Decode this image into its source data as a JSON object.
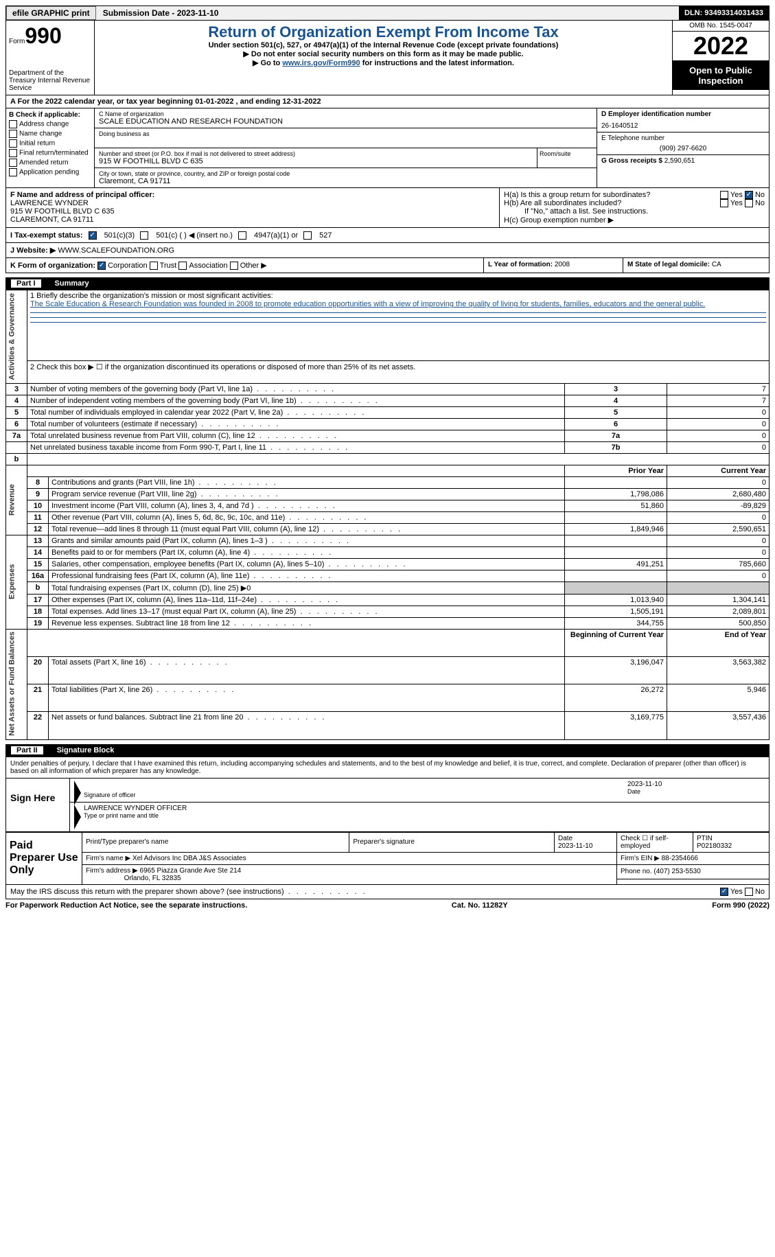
{
  "topbar": {
    "efile": "efile GRAPHIC print",
    "submission": "Submission Date - 2023-11-10",
    "dln": "DLN: 93493314031433"
  },
  "header": {
    "form": "Form",
    "form_num": "990",
    "dept": "Department of the Treasury Internal Revenue Service",
    "title": "Return of Organization Exempt From Income Tax",
    "subtitle": "Under section 501(c), 527, or 4947(a)(1) of the Internal Revenue Code (except private foundations)",
    "note1": "▶ Do not enter social security numbers on this form as it may be made public.",
    "note2_pre": "▶ Go to ",
    "note2_link": "www.irs.gov/Form990",
    "note2_post": " for instructions and the latest information.",
    "omb": "OMB No. 1545-0047",
    "year": "2022",
    "open": "Open to Public Inspection"
  },
  "rowA": "A For the 2022 calendar year, or tax year beginning 01-01-2022    , and ending 12-31-2022",
  "boxB": {
    "title": "B Check if applicable:",
    "opts": [
      "Address change",
      "Name change",
      "Initial return",
      "Final return/terminated",
      "Amended return",
      "Application pending"
    ]
  },
  "boxC": {
    "name_label": "C Name of organization",
    "name": "SCALE EDUCATION AND RESEARCH FOUNDATION",
    "dba_label": "Doing business as",
    "dba": "",
    "addr_label": "Number and street (or P.O. box if mail is not delivered to street address)",
    "room_label": "Room/suite",
    "addr": "915 W FOOTHILL BLVD C 635",
    "city_label": "City or town, state or province, country, and ZIP or foreign postal code",
    "city": "Claremont, CA  91711"
  },
  "boxD": {
    "ein_label": "D Employer identification number",
    "ein": "26-1640512",
    "phone_label": "E Telephone number",
    "phone": "(909) 297-6620",
    "gross_label": "G Gross receipts $",
    "gross": "2,590,651"
  },
  "boxF": {
    "label": "F Name and address of principal officer:",
    "name": "LAWRENCE WYNDER",
    "addr1": "915 W FOOTHILL BLVD C 635",
    "addr2": "CLAREMONT, CA  91711"
  },
  "boxH": {
    "ha": "H(a)  Is this a group return for subordinates?",
    "hb": "H(b)  Are all subordinates included?",
    "hb_note": "If \"No,\" attach a list. See instructions.",
    "hc": "H(c)  Group exemption number ▶",
    "yes": "Yes",
    "no": "No"
  },
  "rowI": {
    "label": "I   Tax-exempt status:",
    "opt1": "501(c)(3)",
    "opt2": "501(c) (  ) ◀ (insert no.)",
    "opt3": "4947(a)(1) or",
    "opt4": "527"
  },
  "rowJ": {
    "label": "J   Website: ▶",
    "value": "WWW.SCALEFOUNDATION.ORG"
  },
  "rowK": {
    "label": "K Form of organization:",
    "opts": [
      "Corporation",
      "Trust",
      "Association",
      "Other ▶"
    ]
  },
  "rowL": {
    "label": "L Year of formation:",
    "value": "2008"
  },
  "rowM": {
    "label": "M State of legal domicile:",
    "value": "CA"
  },
  "part1": {
    "num": "Part I",
    "title": "Summary"
  },
  "summary": {
    "q1_label": "1   Briefly describe the organization's mission or most significant activities:",
    "q1_text": "The Scale Education & Research Foundation was founded in 2008 to promote education opportunities with a view of improving the quality of living for students, families, educators and the general public.",
    "q2": "2    Check this box ▶ ☐  if the organization discontinued its operations or disposed of more than 25% of its net assets.",
    "groups": {
      "ag": "Activities & Governance",
      "rev": "Revenue",
      "exp": "Expenses",
      "nafb": "Net Assets or Fund Balances"
    },
    "prior_hdr": "Prior Year",
    "current_hdr": "Current Year",
    "begin_hdr": "Beginning of Current Year",
    "end_hdr": "End of Year",
    "rows_top": [
      {
        "n": "3",
        "t": "Number of voting members of the governing body (Part VI, line 1a)",
        "box": "3",
        "v": "7"
      },
      {
        "n": "4",
        "t": "Number of independent voting members of the governing body (Part VI, line 1b)",
        "box": "4",
        "v": "7"
      },
      {
        "n": "5",
        "t": "Total number of individuals employed in calendar year 2022 (Part V, line 2a)",
        "box": "5",
        "v": "0"
      },
      {
        "n": "6",
        "t": "Total number of volunteers (estimate if necessary)",
        "box": "6",
        "v": "0"
      },
      {
        "n": "7a",
        "t": "Total unrelated business revenue from Part VIII, column (C), line 12",
        "box": "7a",
        "v": "0"
      },
      {
        "n": "",
        "t": "Net unrelated business taxable income from Form 990-T, Part I, line 11",
        "box": "7b",
        "v": "0"
      }
    ],
    "rows_rev": [
      {
        "n": "8",
        "t": "Contributions and grants (Part VIII, line 1h)",
        "p": "",
        "c": "0"
      },
      {
        "n": "9",
        "t": "Program service revenue (Part VIII, line 2g)",
        "p": "1,798,086",
        "c": "2,680,480"
      },
      {
        "n": "10",
        "t": "Investment income (Part VIII, column (A), lines 3, 4, and 7d )",
        "p": "51,860",
        "c": "-89,829"
      },
      {
        "n": "11",
        "t": "Other revenue (Part VIII, column (A), lines 5, 6d, 8c, 9c, 10c, and 11e)",
        "p": "",
        "c": "0"
      },
      {
        "n": "12",
        "t": "Total revenue—add lines 8 through 11 (must equal Part VIII, column (A), line 12)",
        "p": "1,849,946",
        "c": "2,590,651"
      }
    ],
    "rows_exp": [
      {
        "n": "13",
        "t": "Grants and similar amounts paid (Part IX, column (A), lines 1–3 )",
        "p": "",
        "c": "0"
      },
      {
        "n": "14",
        "t": "Benefits paid to or for members (Part IX, column (A), line 4)",
        "p": "",
        "c": "0"
      },
      {
        "n": "15",
        "t": "Salaries, other compensation, employee benefits (Part IX, column (A), lines 5–10)",
        "p": "491,251",
        "c": "785,660"
      },
      {
        "n": "16a",
        "t": "Professional fundraising fees (Part IX, column (A), line 11e)",
        "p": "",
        "c": "0"
      },
      {
        "n": "b",
        "t": "Total fundraising expenses (Part IX, column (D), line 25) ▶0",
        "p": "SHADE",
        "c": "SHADE"
      },
      {
        "n": "17",
        "t": "Other expenses (Part IX, column (A), lines 11a–11d, 11f–24e)",
        "p": "1,013,940",
        "c": "1,304,141"
      },
      {
        "n": "18",
        "t": "Total expenses. Add lines 13–17 (must equal Part IX, column (A), line 25)",
        "p": "1,505,191",
        "c": "2,089,801"
      },
      {
        "n": "19",
        "t": "Revenue less expenses. Subtract line 18 from line 12",
        "p": "344,755",
        "c": "500,850"
      }
    ],
    "rows_na": [
      {
        "n": "20",
        "t": "Total assets (Part X, line 16)",
        "p": "3,196,047",
        "c": "3,563,382"
      },
      {
        "n": "21",
        "t": "Total liabilities (Part X, line 26)",
        "p": "26,272",
        "c": "5,946"
      },
      {
        "n": "22",
        "t": "Net assets or fund balances. Subtract line 21 from line 20",
        "p": "3,169,775",
        "c": "3,557,436"
      }
    ]
  },
  "part2": {
    "num": "Part II",
    "title": "Signature Block"
  },
  "sig": {
    "declaration": "Under penalties of perjury, I declare that I have examined this return, including accompanying schedules and statements, and to the best of my knowledge and belief, it is true, correct, and complete. Declaration of preparer (other than officer) is based on all information of which preparer has any knowledge.",
    "sign_here": "Sign Here",
    "sig_officer": "Signature of officer",
    "sig_date": "2023-11-10",
    "officer_name": "LAWRENCE WYNDER  OFFICER",
    "type_print": "Type or print name and title",
    "paid_prep": "Paid Preparer Use Only",
    "prep_name_label": "Print/Type preparer's name",
    "prep_sig_label": "Preparer's signature",
    "date_label": "Date",
    "date_val": "2023-11-10",
    "check_label": "Check ☐ if self-employed",
    "ptin_label": "PTIN",
    "ptin": "P02180332",
    "firm_name_label": "Firm's name    ▶",
    "firm_name": "Xel Advisors Inc DBA J&S Associates",
    "firm_ein_label": "Firm's EIN ▶",
    "firm_ein": "88-2354666",
    "firm_addr_label": "Firm's address ▶",
    "firm_addr1": "6965 Piazza Grande Ave Ste 214",
    "firm_addr2": "Orlando, FL  32835",
    "phone_label": "Phone no.",
    "phone": "(407) 253-5530",
    "discuss": "May the IRS discuss this return with the preparer shown above? (see instructions)"
  },
  "footer": {
    "paperwork": "For Paperwork Reduction Act Notice, see the separate instructions.",
    "cat": "Cat. No. 11282Y",
    "form": "Form 990 (2022)"
  }
}
